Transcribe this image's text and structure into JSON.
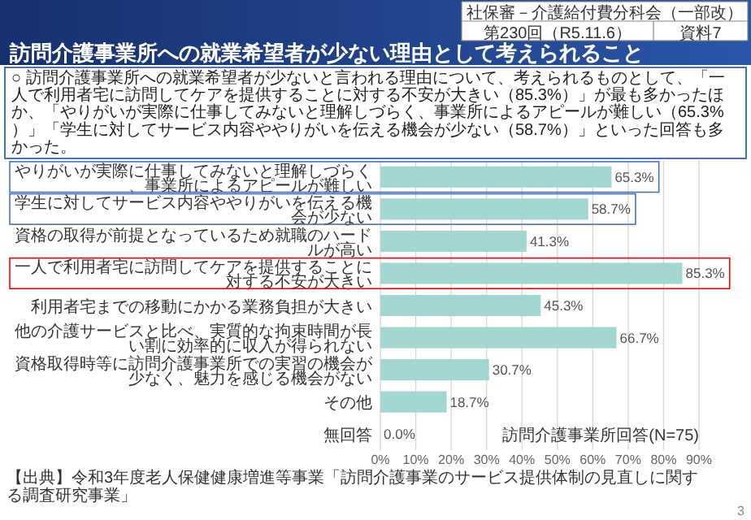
{
  "chart_data": {
    "type": "bar",
    "orientation": "horizontal",
    "title": "訪問介護事業所への就業希望者が少ない理由として考えられること",
    "categories": [
      "やりがいが実際に仕事してみないと理解しづらく、事業所によるアピールが難しい",
      "学生に対してサービス内容ややりがいを伝える機会が少ない",
      "資格の取得が前提となっているため就職のハードルが高い",
      "一人で利用者宅に訪問してケアを提供することに対する不安が大きい",
      "利用者宅までの移動にかかる業務負担が大きい",
      "他の介護サービスと比べ、実質的な拘束時間が長い割に効率的に収入が得られない",
      "資格取得時等に訪問介護事業所での実習の機会が少なく、魅力を感じる機会がない",
      "その他",
      "無回答"
    ],
    "values": [
      65.3,
      58.7,
      41.3,
      85.3,
      45.3,
      66.7,
      30.7,
      18.7,
      0.0
    ],
    "value_labels": [
      "65.3%",
      "58.7%",
      "41.3%",
      "85.3%",
      "45.3%",
      "66.7%",
      "30.7%",
      "18.7%",
      "0.0%"
    ],
    "color": "#a3d5d1",
    "xlim": [
      0,
      90
    ],
    "xticks": [
      {
        "value": 0,
        "label": "0%"
      },
      {
        "value": 10,
        "label": "10%"
      },
      {
        "value": 20,
        "label": "20%"
      },
      {
        "value": 30,
        "label": "30%"
      },
      {
        "value": 40,
        "label": "40%"
      },
      {
        "value": 50,
        "label": "50%"
      },
      {
        "value": 60,
        "label": "60%"
      },
      {
        "value": 70,
        "label": "70%"
      },
      {
        "value": 80,
        "label": "80%"
      },
      {
        "value": 90,
        "label": "90%"
      }
    ],
    "grid": "x",
    "annotations": [
      "社保審－介護給付費分科会（一部改）",
      "第230回（R5.11.6）",
      "資料7",
      "○ 訪問介護事業所への就業希望者が少ないと言われる理由について、考えられるものとして、「一人で利用者宅に訪問してケアを提供することに対する不安が大きい（85.3%）」が最も多かったほか、「やりがいが実際に仕事してみないと理解しづらく、事業所によるアピールが難しい（65.3%）」「学生に対してサービス内容ややりがいを伝える機会が少ない（58.7%）」といった回答も多かった。",
      "訪問介護事業所回答(N=75)",
      "【出典】令和3年度老人保健健康増進等事業「訪問介護事業のサービス提供体制の見直しに関する調査研究事業」",
      "3"
    ]
  }
}
